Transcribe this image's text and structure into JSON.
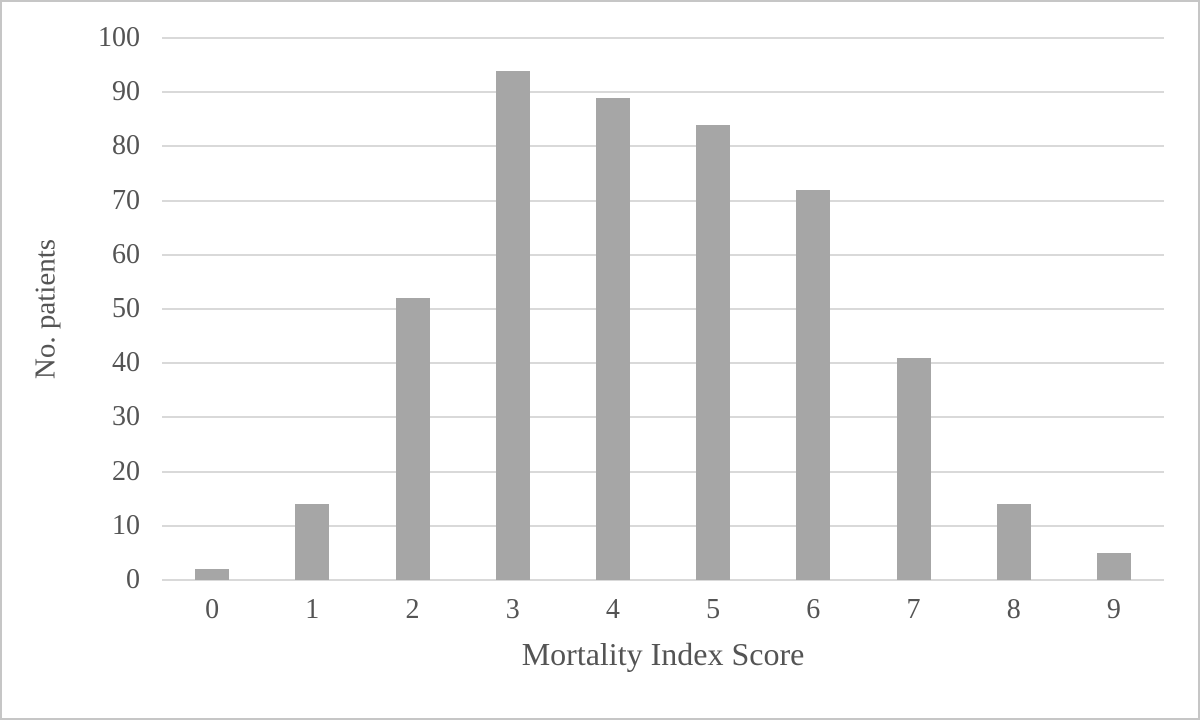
{
  "chart_data": {
    "type": "bar",
    "title": "",
    "categories": [
      "0",
      "1",
      "2",
      "3",
      "4",
      "5",
      "6",
      "7",
      "8",
      "9"
    ],
    "values": [
      2,
      14,
      52,
      94,
      89,
      84,
      72,
      41,
      14,
      5
    ],
    "xlabel": "Mortality Index Score",
    "ylabel": "No. patients",
    "ylim": [
      0,
      100
    ],
    "ytick_step": 10,
    "ytick_labels": [
      "0",
      "10",
      "20",
      "30",
      "40",
      "50",
      "60",
      "70",
      "80",
      "90",
      "100"
    ],
    "grid": "horizontal",
    "legend_position": "none",
    "colors": {
      "bar": "#a6a6a6",
      "gridline": "#d9d9d9",
      "axis_line": "#d9d9d9",
      "text": "#545454",
      "frame_border": "#c6c6c6",
      "background": "#ffffff"
    }
  }
}
